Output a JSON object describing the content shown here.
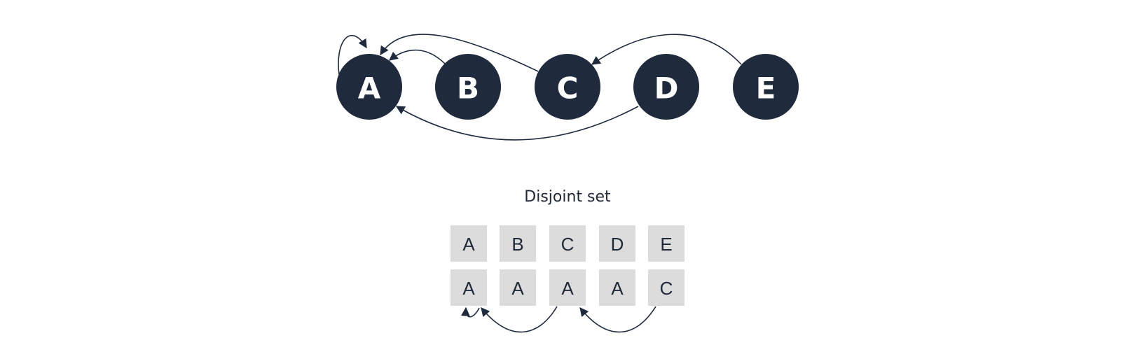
{
  "colors": {
    "node_fill": "#1f2a3d",
    "node_text": "#ffffff",
    "cell_fill": "#dcdcdc",
    "edge": "#1f2a3d",
    "text": "#1f2937"
  },
  "graph": {
    "nodes": [
      {
        "id": "A",
        "label": "A"
      },
      {
        "id": "B",
        "label": "B"
      },
      {
        "id": "C",
        "label": "C"
      },
      {
        "id": "D",
        "label": "D"
      },
      {
        "id": "E",
        "label": "E"
      }
    ],
    "edges": [
      {
        "from": "A",
        "to": "A"
      },
      {
        "from": "B",
        "to": "A"
      },
      {
        "from": "C",
        "to": "A"
      },
      {
        "from": "D",
        "to": "A"
      },
      {
        "from": "E",
        "to": "C"
      }
    ]
  },
  "disjoint_set": {
    "title": "Disjoint set",
    "elements": [
      "A",
      "B",
      "C",
      "D",
      "E"
    ],
    "parents": [
      "A",
      "A",
      "A",
      "A",
      "C"
    ],
    "pointer_edges": [
      {
        "from": "A",
        "to": "A"
      },
      {
        "from": "C",
        "to": "A"
      },
      {
        "from": "E",
        "to": "C"
      }
    ]
  }
}
